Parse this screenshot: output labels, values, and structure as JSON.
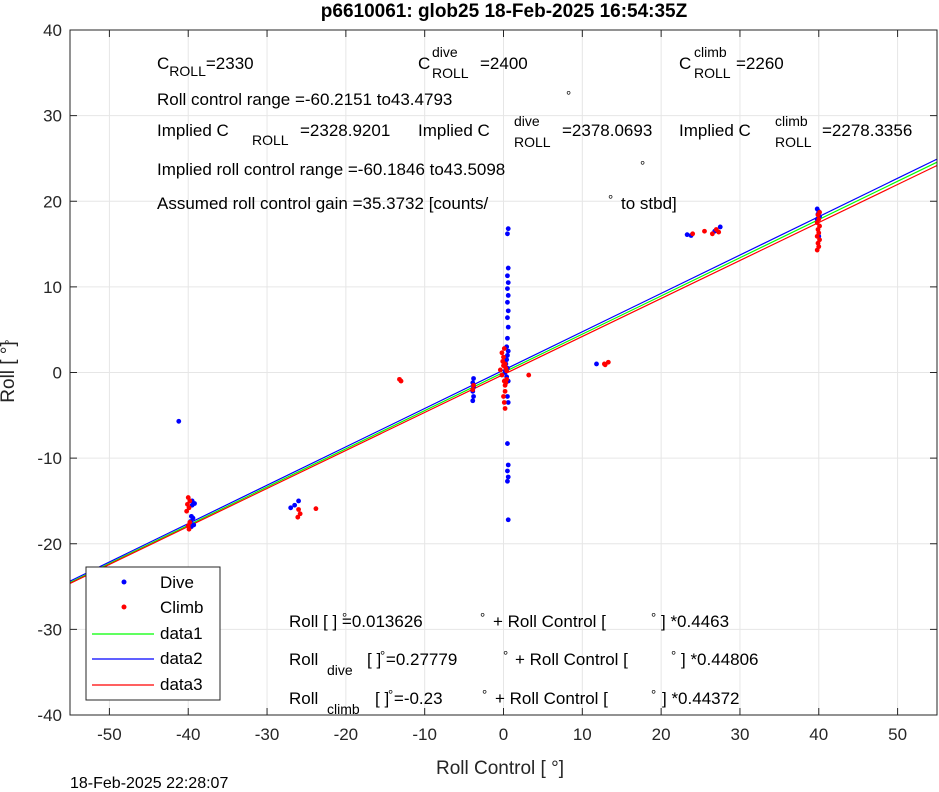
{
  "chart_data": {
    "type": "scatter",
    "title": "p6610061: glob25 18-Feb-2025 16:54:35Z",
    "xlabel": "Roll Control [   °]",
    "ylabel": "Roll [   °]",
    "xlim": [
      -55,
      55
    ],
    "ylim": [
      -40,
      40
    ],
    "x_ticks": [
      -50,
      -40,
      -30,
      -20,
      -10,
      0,
      10,
      20,
      30,
      40,
      50
    ],
    "y_ticks": [
      -40,
      -30,
      -20,
      -10,
      0,
      10,
      20,
      30,
      40
    ],
    "grid": true,
    "legend_position": "bottom-left",
    "footer_timestamp": "18-Feb-2025 22:28:07",
    "annotations": {
      "c_roll": "C",
      "c_roll_sub": "ROLL",
      "c_roll_val": "=2330",
      "c_dive": "C",
      "c_dive_sup": "dive",
      "c_dive_sub": "ROLL",
      "c_dive_val": "=2400",
      "c_climb": "C",
      "c_climb_sup": "climb",
      "c_climb_sub": "ROLL",
      "c_climb_val": "=2260",
      "range_line": "Roll control range =-60.2151 to43.4793",
      "deg_mark": "°",
      "implied_c": "Implied C",
      "implied_sub": "ROLL",
      "implied_val": "=2328.9201",
      "implied_dive": "Implied C",
      "implied_dive_sup": "dive",
      "implied_dive_sub": "ROLL",
      "implied_dive_val": "=2378.0693",
      "implied_climb": "Implied C",
      "implied_climb_sup": "climb",
      "implied_climb_sub": "ROLL",
      "implied_climb_val": "=2278.3356",
      "implied_range": "Implied roll control range =-60.1846 to43.5098",
      "gain_line": "Assumed roll control gain =35.3732 [counts/",
      "gain_end": "to stbd]",
      "fit_all_a": "Roll [   ] =0.013626",
      "fit_all_b": "+ Roll Control [",
      "fit_all_c": "] *0.4463",
      "fit_dive_a": "Roll",
      "fit_dive_sub": "dive",
      "fit_dive_b": "[   ] =0.27779",
      "fit_dive_c": "+ Roll Control [",
      "fit_dive_d": "] *0.44806",
      "fit_climb_a": "Roll",
      "fit_climb_sub": "climb",
      "fit_climb_b": "[   ] =-0.23",
      "fit_climb_c": "+ Roll Control [",
      "fit_climb_d": "] *0.44372"
    },
    "lines": [
      {
        "name": "data1",
        "color": "#00ff00",
        "intercept": 0.013626,
        "slope": 0.4463
      },
      {
        "name": "data2",
        "color": "#0000ff",
        "intercept": 0.27779,
        "slope": 0.44806
      },
      {
        "name": "data3",
        "color": "#ff0000",
        "intercept": -0.23,
        "slope": 0.44372
      }
    ],
    "series": [
      {
        "name": "Dive",
        "color": "#0000ff",
        "points": [
          [
            -41.2,
            -5.7
          ],
          [
            -39.5,
            -15.0
          ],
          [
            -39.5,
            -15.5
          ],
          [
            -39.2,
            -15.3
          ],
          [
            -39.6,
            -16.8
          ],
          [
            -39.4,
            -17.0
          ],
          [
            -39.7,
            -17.4
          ],
          [
            -39.3,
            -17.8
          ],
          [
            -39.6,
            -18.0
          ],
          [
            -27.0,
            -15.8
          ],
          [
            -26.5,
            -15.5
          ],
          [
            -26.0,
            -15.0
          ],
          [
            -3.8,
            -0.7
          ],
          [
            -3.9,
            -1.2
          ],
          [
            -3.8,
            -1.7
          ],
          [
            -3.9,
            -2.2
          ],
          [
            -3.8,
            -2.8
          ],
          [
            -3.9,
            -3.3
          ],
          [
            0.2,
            0.0
          ],
          [
            0.4,
            -0.5
          ],
          [
            0.5,
            0.5
          ],
          [
            0.3,
            1.0
          ],
          [
            0.6,
            -1.0
          ],
          [
            0.4,
            1.5
          ],
          [
            0.5,
            2.0
          ],
          [
            0.6,
            2.5
          ],
          [
            0.4,
            3.0
          ],
          [
            0.5,
            4.0
          ],
          [
            0.6,
            5.3
          ],
          [
            0.5,
            6.4
          ],
          [
            0.6,
            7.2
          ],
          [
            0.5,
            8.2
          ],
          [
            0.6,
            9.0
          ],
          [
            0.5,
            9.8
          ],
          [
            0.6,
            10.5
          ],
          [
            0.5,
            11.3
          ],
          [
            0.6,
            12.2
          ],
          [
            0.5,
            16.2
          ],
          [
            0.6,
            16.8
          ],
          [
            0.5,
            -2.8
          ],
          [
            0.6,
            -3.5
          ],
          [
            0.5,
            -8.3
          ],
          [
            0.6,
            -10.8
          ],
          [
            0.5,
            -11.5
          ],
          [
            0.6,
            -12.2
          ],
          [
            0.5,
            -12.7
          ],
          [
            0.6,
            -17.2
          ],
          [
            11.8,
            1.0
          ],
          [
            23.3,
            16.1
          ],
          [
            23.8,
            16.0
          ],
          [
            27.5,
            17.0
          ],
          [
            26.8,
            16.5
          ],
          [
            39.8,
            19.1
          ],
          [
            40.0,
            18.8
          ],
          [
            39.9,
            18.5
          ],
          [
            40.1,
            18.2
          ],
          [
            39.8,
            17.9
          ],
          [
            40.0,
            15.9
          ]
        ]
      },
      {
        "name": "Climb",
        "color": "#ff0000",
        "points": [
          [
            -40.0,
            -14.6
          ],
          [
            -39.8,
            -15.0
          ],
          [
            -40.1,
            -15.4
          ],
          [
            -39.9,
            -15.8
          ],
          [
            -40.2,
            -16.2
          ],
          [
            -39.8,
            -17.5
          ],
          [
            -40.0,
            -17.9
          ],
          [
            -39.9,
            -18.3
          ],
          [
            -26.0,
            -16.0
          ],
          [
            -25.8,
            -16.5
          ],
          [
            -26.1,
            -16.9
          ],
          [
            -23.8,
            -15.9
          ],
          [
            -13.2,
            -0.8
          ],
          [
            -13.0,
            -1.0
          ],
          [
            -3.8,
            -1.5
          ],
          [
            -3.9,
            -2.0
          ],
          [
            -0.4,
            0.3
          ],
          [
            -0.2,
            -0.3
          ],
          [
            0.0,
            0.8
          ],
          [
            0.1,
            -1.0
          ],
          [
            -0.1,
            1.3
          ],
          [
            0.2,
            -1.5
          ],
          [
            0.0,
            1.8
          ],
          [
            -0.2,
            2.3
          ],
          [
            0.1,
            2.8
          ],
          [
            0.2,
            -2.2
          ],
          [
            0.0,
            -2.8
          ],
          [
            0.1,
            -3.5
          ],
          [
            0.2,
            -4.2
          ],
          [
            0.3,
            0.5
          ],
          [
            0.4,
            -0.8
          ],
          [
            0.2,
            1.0
          ],
          [
            0.3,
            -1.2
          ],
          [
            0.4,
            0.2
          ],
          [
            3.2,
            -0.3
          ],
          [
            12.8,
            1.0
          ],
          [
            13.3,
            1.2
          ],
          [
            12.9,
            0.9
          ],
          [
            24.0,
            16.2
          ],
          [
            25.5,
            16.5
          ],
          [
            27.0,
            16.7
          ],
          [
            26.5,
            16.2
          ],
          [
            27.3,
            16.4
          ],
          [
            39.8,
            14.3
          ],
          [
            40.0,
            14.7
          ],
          [
            39.9,
            15.1
          ],
          [
            40.1,
            15.5
          ],
          [
            39.8,
            15.9
          ],
          [
            40.0,
            16.3
          ],
          [
            39.9,
            16.7
          ],
          [
            40.1,
            17.1
          ],
          [
            39.8,
            17.5
          ],
          [
            40.0,
            17.9
          ],
          [
            39.9,
            18.4
          ],
          [
            40.1,
            18.7
          ]
        ]
      }
    ]
  }
}
